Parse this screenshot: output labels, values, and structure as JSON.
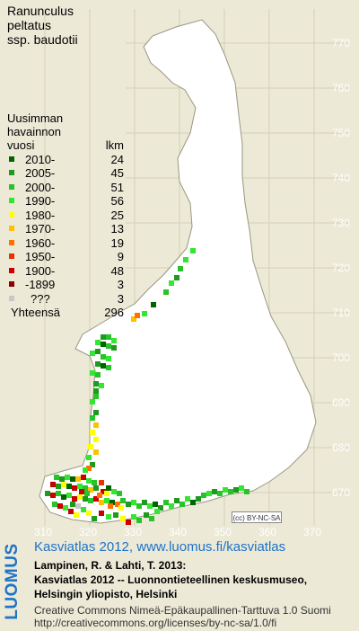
{
  "title_lines": [
    "Ranunculus",
    "peltatus",
    "ssp. baudotii"
  ],
  "legend": {
    "header_lines": [
      "Uusimman",
      "havainnon"
    ],
    "col_year": "vuosi",
    "col_count": "lkm",
    "rows": [
      {
        "label": "2010-",
        "count": "24",
        "color": "#006400"
      },
      {
        "label": "2005-",
        "count": "45",
        "color": "#1e9b1e"
      },
      {
        "label": "2000-",
        "count": "51",
        "color": "#28c328"
      },
      {
        "label": "1990-",
        "count": "56",
        "color": "#32e632"
      },
      {
        "label": "1980-",
        "count": "25",
        "color": "#ffff00"
      },
      {
        "label": "1970-",
        "count": "13",
        "color": "#ffc000"
      },
      {
        "label": "1960-",
        "count": "19",
        "color": "#ff7000"
      },
      {
        "label": "1950-",
        "count": "9",
        "color": "#e83000"
      },
      {
        "label": "1900-",
        "count": "48",
        "color": "#c80000"
      },
      {
        "label": "-1899",
        "count": "3",
        "color": "#8b0000"
      },
      {
        "label": "???",
        "count": "3",
        "color": "#c8c8c8"
      }
    ],
    "total_label": "Yhteensä",
    "total_count": "296"
  },
  "grid_labels": {
    "north": [
      "770",
      "760",
      "750",
      "740",
      "730",
      "720",
      "710",
      "700",
      "690",
      "680",
      "670"
    ],
    "east": [
      "310",
      "320",
      "330",
      "340",
      "350",
      "360",
      "370"
    ]
  },
  "cc_badge": "(cc) BY-NC-SA",
  "footer": {
    "brand": "LUOMUS",
    "link": "Kasviatlas 2012, www.luomus.fi/kasviatlas",
    "citation_lines": [
      "Lampinen, R. & Lahti, T. 2013:",
      "Kasviatlas 2012 -- Luonnontieteellinen keskusmuseo,",
      "Helsingin yliopisto, Helsinki"
    ],
    "license_lines": [
      "Creative Commons Nimeä-Epäkaupallinen-Tarttuva 1.0 Suomi",
      "http://creativecommons.org/licenses/by-nc-sa/1.0/fi"
    ]
  }
}
